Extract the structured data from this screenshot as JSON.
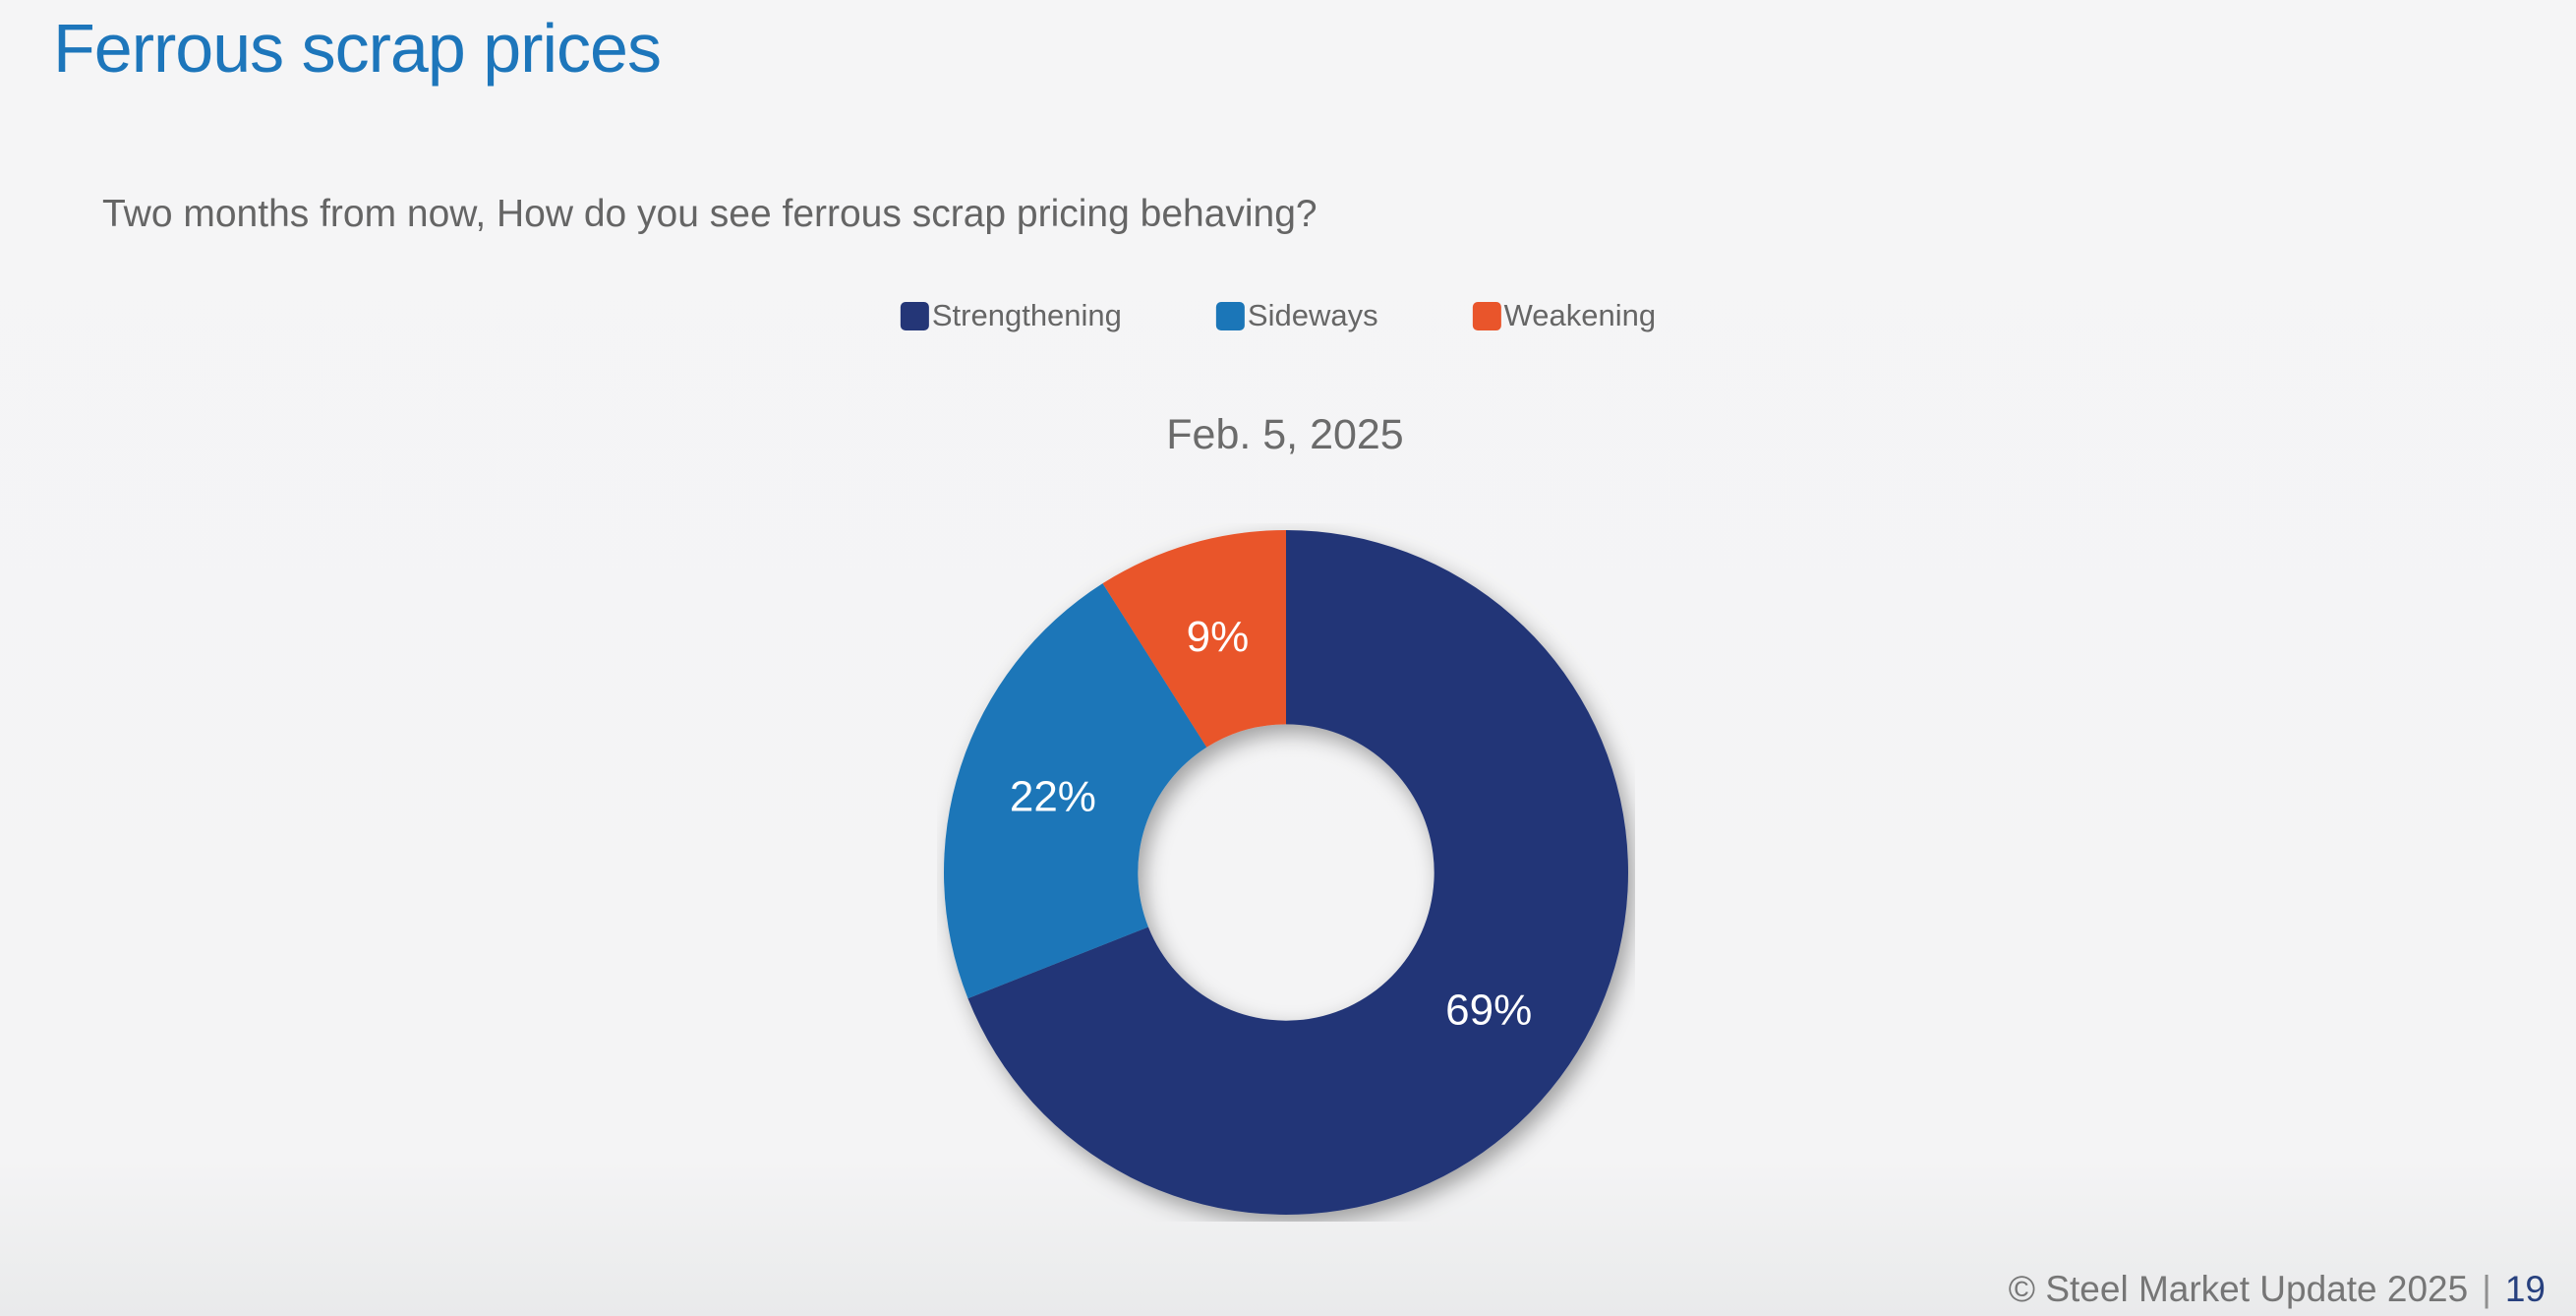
{
  "page": {
    "title": "Ferrous scrap prices",
    "question": "Two months from now, How do you see ferrous scrap pricing behaving?",
    "footer": {
      "copyright": "© Steel Market Update 2025",
      "separator": "|",
      "page_number": "19"
    }
  },
  "colors": {
    "title_blue": "#1d76bb",
    "background": "#f4f4f5",
    "text_gray": "#656565",
    "footer_gray": "#767676",
    "page_number_navy": "#27407e"
  },
  "chart_data": {
    "type": "pie",
    "subtype": "donut",
    "title": "Feb. 5, 2025",
    "categories": [
      "Strengthening",
      "Sideways",
      "Weakening"
    ],
    "values": [
      69,
      22,
      9
    ],
    "labels": [
      "69%",
      "22%",
      "9%"
    ],
    "unit": "%",
    "colors": [
      "#243677",
      "#1b76b8",
      "#e9552b"
    ],
    "slice_label_color": "#ffffff",
    "start_angle_deg": 0,
    "direction": "clockwise",
    "inner_radius_ratio": 0.433,
    "legend_position": "top"
  }
}
